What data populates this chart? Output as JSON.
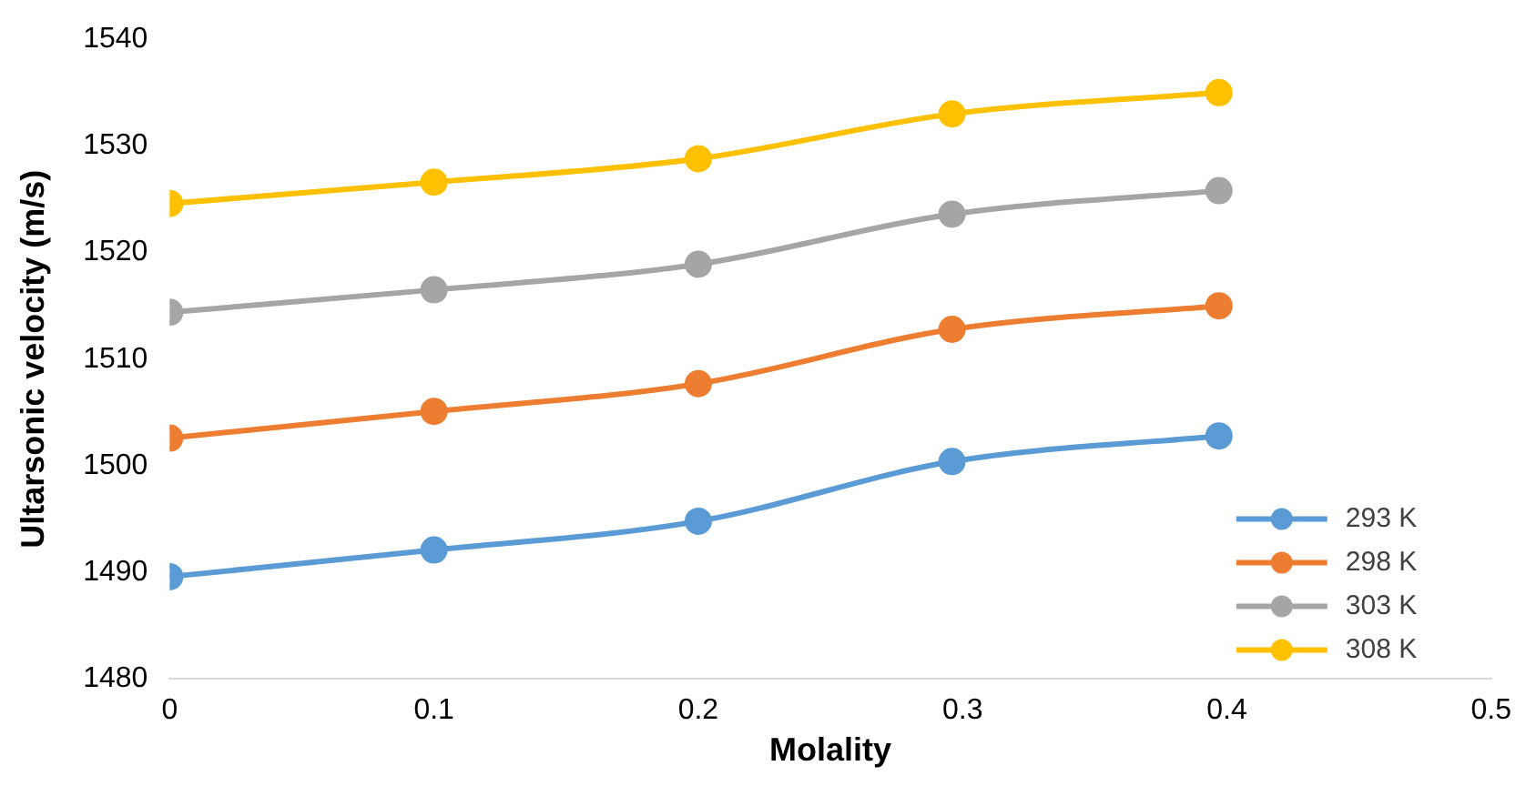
{
  "chart_data": {
    "type": "line",
    "xlabel": "Molality",
    "ylabel": "Ultarsonic velocity (m/s)",
    "x": [
      0,
      0.1,
      0.2,
      0.296,
      0.397
    ],
    "series": [
      {
        "name": "293 K",
        "color": "#5b9bd5",
        "values": [
          1489.6,
          1492.1,
          1494.8,
          1500.4,
          1502.8
        ]
      },
      {
        "name": "298 K",
        "color": "#ed7d31",
        "values": [
          1502.6,
          1505.1,
          1507.7,
          1512.8,
          1515.0
        ]
      },
      {
        "name": "303 K",
        "color": "#a5a5a5",
        "values": [
          1514.4,
          1516.5,
          1518.9,
          1523.6,
          1525.8
        ]
      },
      {
        "name": "308 K",
        "color": "#ffc000",
        "values": [
          1524.6,
          1526.6,
          1528.8,
          1533.0,
          1535.0
        ]
      }
    ],
    "xlim": [
      0,
      0.5
    ],
    "xticks": [
      0,
      0.1,
      0.2,
      0.3,
      0.4,
      0.5
    ],
    "ylim": [
      1480,
      1540
    ],
    "yticks": [
      1480,
      1490,
      1500,
      1510,
      1520,
      1530,
      1540
    ],
    "grid": false,
    "legend": "bottom right",
    "marker": "circle",
    "line_style": "solid"
  }
}
